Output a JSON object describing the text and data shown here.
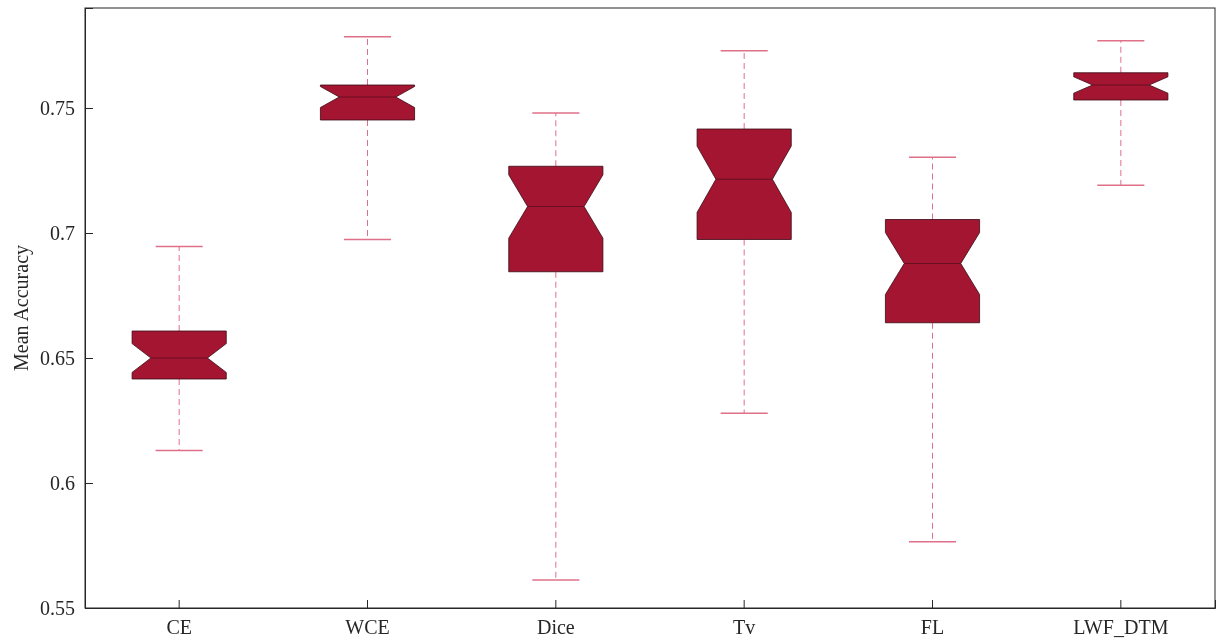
{
  "chart_data": {
    "type": "box",
    "ylabel": "Mean Accuracy",
    "categories": [
      "CE",
      "WCE",
      "Dice",
      "Tv",
      "FL",
      "LWF_DTM"
    ],
    "color": "#a31530",
    "boxes": [
      {
        "low": 0.613,
        "q1": 0.6416,
        "median": 0.65,
        "q3": 0.6608,
        "high": 0.6946
      },
      {
        "low": 0.6974,
        "q1": 0.7452,
        "median": 0.7544,
        "q3": 0.7592,
        "high": 0.7785
      },
      {
        "low": 0.5612,
        "q1": 0.6845,
        "median": 0.7106,
        "q3": 0.7267,
        "high": 0.748
      },
      {
        "low": 0.6279,
        "q1": 0.6974,
        "median": 0.7215,
        "q3": 0.7416,
        "high": 0.7729
      },
      {
        "low": 0.5765,
        "q1": 0.6641,
        "median": 0.6878,
        "q3": 0.7054,
        "high": 0.7303
      },
      {
        "low": 0.7191,
        "q1": 0.7532,
        "median": 0.7592,
        "q3": 0.7641,
        "high": 0.7769
      }
    ],
    "ylim": [
      0.55,
      0.79
    ],
    "yticks": [
      0.55,
      0.6,
      0.65,
      0.7,
      0.75
    ],
    "grid": false
  }
}
